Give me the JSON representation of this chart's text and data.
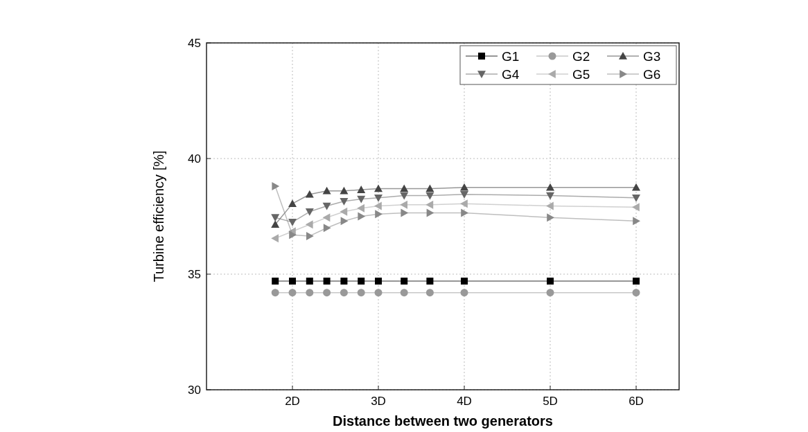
{
  "chart_data": {
    "type": "line",
    "xlabel": "Distance between two generators",
    "ylabel": "Turbine efficiency [%]",
    "x": [
      1.8,
      2.0,
      2.2,
      2.4,
      2.6,
      2.8,
      3.0,
      3.3,
      3.6,
      4,
      5,
      6
    ],
    "xlim": [
      1,
      6.5
    ],
    "xticks": [
      {
        "value": 2,
        "label": "2D"
      },
      {
        "value": 3,
        "label": "3D"
      },
      {
        "value": 4,
        "label": "4D"
      },
      {
        "value": 5,
        "label": "5D"
      },
      {
        "value": 6,
        "label": "6D"
      }
    ],
    "ylim": [
      30,
      45
    ],
    "yticks": [
      30,
      35,
      40,
      45
    ],
    "grid": true,
    "legend": "top right",
    "series": [
      {
        "name": "G1",
        "color": "#000000",
        "marker": "square",
        "values": [
          34.7,
          34.7,
          34.7,
          34.7,
          34.7,
          34.7,
          34.7,
          34.7,
          34.7,
          34.7,
          34.7,
          34.7
        ]
      },
      {
        "name": "G2",
        "color": "#999999",
        "marker": "circle",
        "values": [
          34.2,
          34.2,
          34.2,
          34.2,
          34.2,
          34.2,
          34.2,
          34.2,
          34.2,
          34.2,
          34.2,
          34.2
        ]
      },
      {
        "name": "G3",
        "color": "#444444",
        "marker": "triangle",
        "values": [
          37.15,
          38.05,
          38.45,
          38.6,
          38.6,
          38.65,
          38.7,
          38.7,
          38.7,
          38.75,
          38.75,
          38.75
        ]
      },
      {
        "name": "G4",
        "color": "#666666",
        "marker": "triangle-down",
        "values": [
          37.45,
          37.25,
          37.7,
          37.95,
          38.15,
          38.25,
          38.3,
          38.4,
          38.4,
          38.45,
          38.4,
          38.3
        ]
      },
      {
        "name": "G5",
        "color": "#aaaaaa",
        "marker": "triangle-left",
        "values": [
          36.55,
          36.85,
          37.15,
          37.45,
          37.7,
          37.85,
          37.95,
          38.0,
          38.0,
          38.05,
          37.95,
          37.9
        ]
      },
      {
        "name": "G6",
        "color": "#888888",
        "marker": "triangle-right",
        "values": [
          38.8,
          36.7,
          36.65,
          37.0,
          37.3,
          37.5,
          37.6,
          37.65,
          37.65,
          37.65,
          37.45,
          37.3
        ]
      }
    ]
  }
}
